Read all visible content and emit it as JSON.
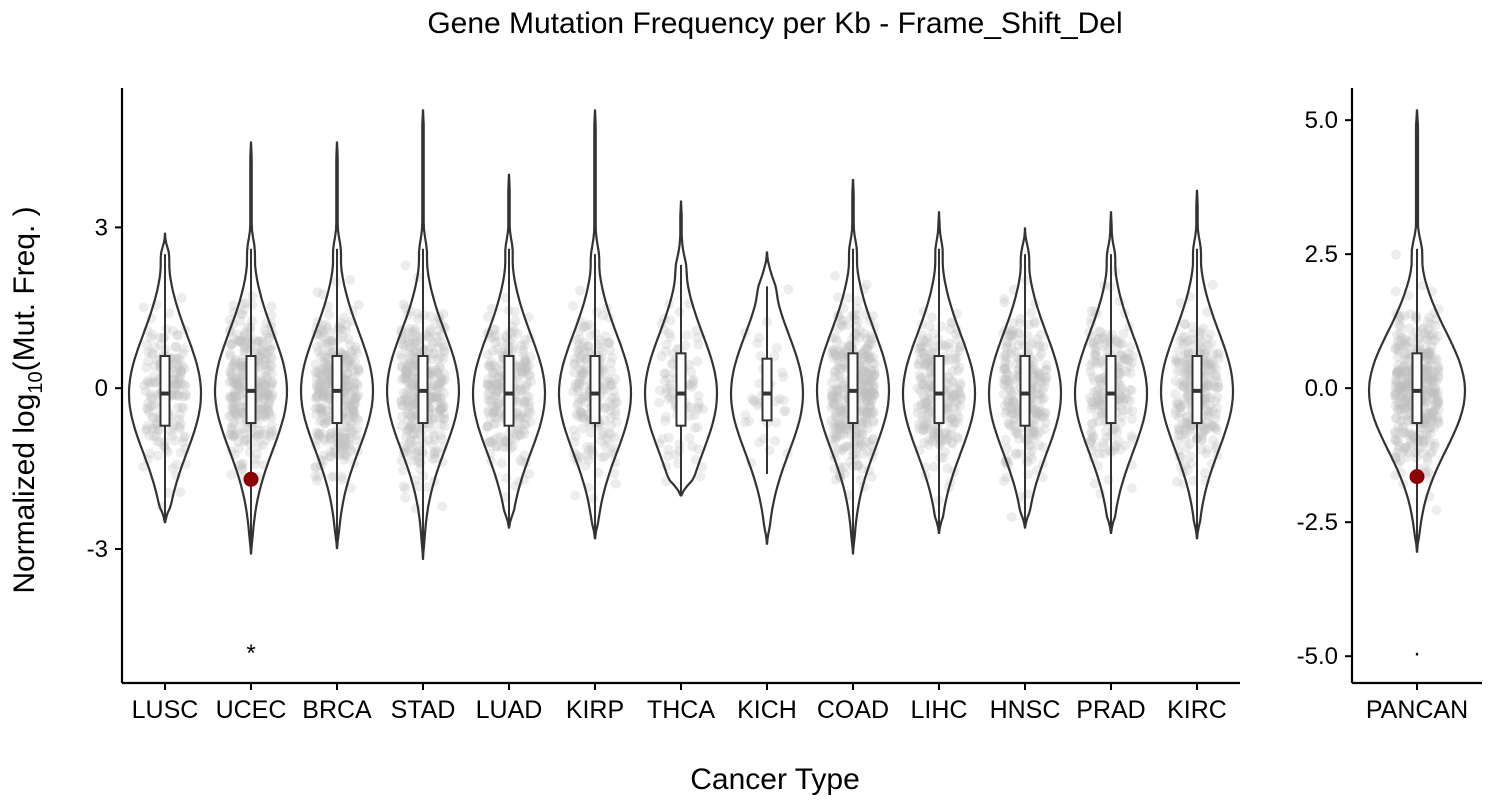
{
  "title": "Gene Mutation Frequency per Kb - Frame_Shift_Del",
  "colors": {
    "violin_stroke": "#333333",
    "jitter_point": "#bfbfbf",
    "highlight_point": "#8b0000",
    "box_fill": "#ffffff",
    "axis": "#000000"
  },
  "chart_data": [
    {
      "type": "violin",
      "panel": "cancer-types",
      "title": "Gene Mutation Frequency per Kb - Frame_Shift_Del",
      "xlabel": "Cancer Type",
      "ylabel_main": "Normalized log",
      "ylabel_sub": "10",
      "ylabel_tail": "(Mut. Freq. )",
      "ylim": [
        -5.5,
        5.6
      ],
      "yticks": [
        -3,
        0,
        3
      ],
      "ytick_labels": [
        "-3",
        "0",
        "3"
      ],
      "grid": false,
      "categories": [
        "LUSC",
        "UCEC",
        "BRCA",
        "STAD",
        "LUAD",
        "KIRP",
        "THCA",
        "KICH",
        "COAD",
        "LIHC",
        "HNSC",
        "PRAD",
        "KIRC"
      ],
      "series": [
        {
          "category": "LUSC",
          "min": -2.5,
          "max": 2.9,
          "q1": -0.7,
          "median": -0.1,
          "q3": 0.6,
          "whisker_low": -2.5,
          "whisker_high": 2.5,
          "density": 0.3
        },
        {
          "category": "UCEC",
          "min": -3.1,
          "max": 4.6,
          "q1": -0.65,
          "median": -0.05,
          "q3": 0.6,
          "whisker_low": -3.1,
          "whisker_high": 2.6,
          "density": 0.6
        },
        {
          "category": "BRCA",
          "min": -3.0,
          "max": 4.6,
          "q1": -0.65,
          "median": -0.05,
          "q3": 0.6,
          "whisker_low": -3.0,
          "whisker_high": 2.6,
          "density": 0.65
        },
        {
          "category": "STAD",
          "min": -3.2,
          "max": 5.2,
          "q1": -0.65,
          "median": -0.05,
          "q3": 0.6,
          "whisker_low": -3.2,
          "whisker_high": 2.6,
          "density": 0.65
        },
        {
          "category": "LUAD",
          "min": -2.6,
          "max": 4.0,
          "q1": -0.7,
          "median": -0.1,
          "q3": 0.6,
          "whisker_low": -2.6,
          "whisker_high": 2.6,
          "density": 0.45
        },
        {
          "category": "KIRP",
          "min": -2.8,
          "max": 5.2,
          "q1": -0.65,
          "median": -0.1,
          "q3": 0.6,
          "whisker_low": -2.8,
          "whisker_high": 2.5,
          "density": 0.35
        },
        {
          "category": "THCA",
          "min": -2.0,
          "max": 3.5,
          "q1": -0.7,
          "median": -0.1,
          "q3": 0.65,
          "whisker_low": -2.0,
          "whisker_high": 2.3,
          "density": 0.12
        },
        {
          "category": "KICH",
          "min": -2.9,
          "max": 2.55,
          "q1": -0.6,
          "median": -0.1,
          "q3": 0.55,
          "whisker_low": -1.6,
          "whisker_high": 1.9,
          "density": 0.0
        },
        {
          "category": "COAD",
          "min": -3.1,
          "max": 3.9,
          "q1": -0.65,
          "median": -0.05,
          "q3": 0.65,
          "whisker_low": -3.1,
          "whisker_high": 2.6,
          "density": 0.7
        },
        {
          "category": "LIHC",
          "min": -2.7,
          "max": 3.3,
          "q1": -0.65,
          "median": -0.1,
          "q3": 0.6,
          "whisker_low": -2.7,
          "whisker_high": 2.6,
          "density": 0.4
        },
        {
          "category": "HNSC",
          "min": -2.6,
          "max": 3.0,
          "q1": -0.7,
          "median": -0.1,
          "q3": 0.6,
          "whisker_low": -2.6,
          "whisker_high": 2.5,
          "density": 0.45
        },
        {
          "category": "PRAD",
          "min": -2.7,
          "max": 3.3,
          "q1": -0.65,
          "median": -0.1,
          "q3": 0.6,
          "whisker_low": -2.7,
          "whisker_high": 2.5,
          "density": 0.35
        },
        {
          "category": "KIRC",
          "min": -2.8,
          "max": 3.7,
          "q1": -0.65,
          "median": -0.05,
          "q3": 0.6,
          "whisker_low": -2.8,
          "whisker_high": 2.6,
          "density": 0.45
        }
      ],
      "highlight": {
        "category": "UCEC",
        "value": -1.7
      },
      "annotation": {
        "category": "UCEC",
        "value": -4.9,
        "text": "*"
      }
    },
    {
      "type": "violin",
      "panel": "pancan",
      "ylim": [
        -5.5,
        5.6
      ],
      "yticks": [
        -5.0,
        -2.5,
        0.0,
        2.5,
        5.0
      ],
      "ytick_labels": [
        "-5.0",
        "-2.5",
        "0.0",
        "2.5",
        "5.0"
      ],
      "grid": false,
      "categories": [
        "PANCAN"
      ],
      "series": [
        {
          "category": "PANCAN",
          "min": -3.05,
          "max": 5.2,
          "q1": -0.65,
          "median": -0.05,
          "q3": 0.65,
          "whisker_low": -3.05,
          "whisker_high": 2.6,
          "density": 0.8
        }
      ],
      "highlight": {
        "category": "PANCAN",
        "value": -1.65
      },
      "annotation": {
        "category": "PANCAN",
        "value": -4.9,
        "text": "·"
      }
    }
  ]
}
